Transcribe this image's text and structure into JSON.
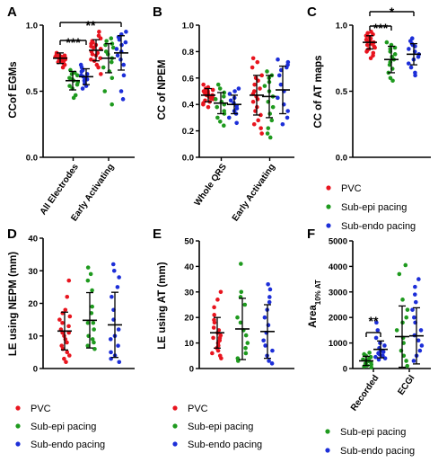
{
  "colors": {
    "red": "#e8141e",
    "green": "#1e9a1e",
    "blue": "#1c2ed8",
    "black": "#000000"
  },
  "chart_data": [
    {
      "panel": "A",
      "type": "scatter",
      "ylabel": "CCof EGMs",
      "ylim": [
        0,
        1
      ],
      "yticks": [
        "0.0",
        "0.5",
        "1.0"
      ],
      "categories": [
        "All Electrodes",
        "Early Activating"
      ],
      "significance": [
        "***",
        "**"
      ],
      "groups": [
        {
          "category": 0,
          "color": "red",
          "mean": 0.75,
          "sd": 0.04,
          "points": [
            0.77,
            0.76,
            0.75,
            0.75,
            0.74,
            0.73,
            0.78,
            0.72,
            0.76,
            0.74,
            0.71,
            0.79,
            0.75,
            0.73,
            0.77,
            0.7,
            0.74,
            0.76,
            0.72,
            0.68
          ]
        },
        {
          "category": 0,
          "color": "green",
          "mean": 0.58,
          "sd": 0.07,
          "points": [
            0.66,
            0.63,
            0.6,
            0.58,
            0.57,
            0.55,
            0.52,
            0.47,
            0.45,
            0.62,
            0.59,
            0.54,
            0.64
          ]
        },
        {
          "category": 0,
          "color": "blue",
          "mean": 0.61,
          "sd": 0.06,
          "points": [
            0.7,
            0.68,
            0.65,
            0.63,
            0.61,
            0.6,
            0.58,
            0.56,
            0.54,
            0.52,
            0.62,
            0.66,
            0.59
          ]
        },
        {
          "category": 1,
          "color": "red",
          "mean": 0.81,
          "sd": 0.08,
          "points": [
            0.95,
            0.92,
            0.9,
            0.88,
            0.86,
            0.85,
            0.83,
            0.82,
            0.8,
            0.78,
            0.77,
            0.75,
            0.73,
            0.7,
            0.68,
            0.63,
            0.87,
            0.79,
            0.84,
            0.74
          ]
        },
        {
          "category": 1,
          "color": "green",
          "mean": 0.75,
          "sd": 0.11,
          "points": [
            0.9,
            0.88,
            0.85,
            0.83,
            0.8,
            0.78,
            0.75,
            0.72,
            0.68,
            0.65,
            0.6,
            0.5,
            0.4,
            0.86
          ]
        },
        {
          "category": 1,
          "color": "blue",
          "mean": 0.79,
          "sd": 0.13,
          "points": [
            0.95,
            0.93,
            0.91,
            0.89,
            0.87,
            0.85,
            0.82,
            0.8,
            0.77,
            0.74,
            0.7,
            0.62,
            0.5,
            0.44
          ]
        }
      ]
    },
    {
      "panel": "B",
      "type": "scatter",
      "ylabel": "CC of NPEM",
      "ylim": [
        0,
        1
      ],
      "yticks": [
        "0.0",
        "0.2",
        "0.4",
        "0.6",
        "0.8",
        "1.0"
      ],
      "categories": [
        "Whole QRS",
        "Early Activating"
      ],
      "significance": [],
      "groups": [
        {
          "category": 0,
          "color": "red",
          "mean": 0.47,
          "sd": 0.05,
          "points": [
            0.55,
            0.53,
            0.52,
            0.51,
            0.5,
            0.49,
            0.48,
            0.47,
            0.47,
            0.46,
            0.45,
            0.44,
            0.43,
            0.42,
            0.41,
            0.4,
            0.38,
            0.49,
            0.5,
            0.45
          ]
        },
        {
          "category": 0,
          "color": "green",
          "mean": 0.41,
          "sd": 0.08,
          "points": [
            0.55,
            0.52,
            0.49,
            0.46,
            0.44,
            0.42,
            0.4,
            0.38,
            0.35,
            0.33,
            0.3,
            0.27,
            0.24
          ]
        },
        {
          "category": 0,
          "color": "blue",
          "mean": 0.4,
          "sd": 0.07,
          "points": [
            0.52,
            0.5,
            0.48,
            0.45,
            0.43,
            0.41,
            0.39,
            0.37,
            0.35,
            0.33,
            0.3,
            0.26
          ]
        },
        {
          "category": 1,
          "color": "red",
          "mean": 0.47,
          "sd": 0.15,
          "points": [
            0.75,
            0.72,
            0.68,
            0.62,
            0.58,
            0.55,
            0.52,
            0.48,
            0.46,
            0.44,
            0.42,
            0.38,
            0.35,
            0.32,
            0.28,
            0.25,
            0.22,
            0.18,
            0.6,
            0.5
          ]
        },
        {
          "category": 1,
          "color": "green",
          "mean": 0.46,
          "sd": 0.16,
          "points": [
            0.65,
            0.62,
            0.6,
            0.57,
            0.54,
            0.5,
            0.46,
            0.42,
            0.38,
            0.33,
            0.28,
            0.22,
            0.18,
            0.15
          ]
        },
        {
          "category": 1,
          "color": "blue",
          "mean": 0.51,
          "sd": 0.18,
          "points": [
            0.74,
            0.72,
            0.7,
            0.68,
            0.66,
            0.62,
            0.55,
            0.5,
            0.45,
            0.4,
            0.35,
            0.3,
            0.25
          ]
        }
      ]
    },
    {
      "panel": "C",
      "type": "scatter",
      "ylabel": "CC of AT maps",
      "ylim": [
        0,
        1
      ],
      "yticks": [
        "0.0",
        "0.5",
        "1.0"
      ],
      "categories": [
        ""
      ],
      "significance": [
        "***",
        "*"
      ],
      "legend": [
        "PVC",
        "Sub-epi pacing",
        "Sub-endo pacing"
      ],
      "groups": [
        {
          "category": 0,
          "color": "red",
          "offset": -1,
          "mean": 0.87,
          "sd": 0.05,
          "points": [
            0.95,
            0.94,
            0.93,
            0.92,
            0.91,
            0.9,
            0.89,
            0.88,
            0.88,
            0.87,
            0.86,
            0.85,
            0.84,
            0.83,
            0.82,
            0.81,
            0.8,
            0.79,
            0.77,
            0.75
          ]
        },
        {
          "category": 0,
          "color": "green",
          "offset": 0,
          "mean": 0.74,
          "sd": 0.1,
          "points": [
            0.87,
            0.85,
            0.83,
            0.8,
            0.78,
            0.76,
            0.74,
            0.72,
            0.7,
            0.67,
            0.64,
            0.6,
            0.58,
            0.82
          ]
        },
        {
          "category": 0,
          "color": "blue",
          "offset": 1,
          "mean": 0.78,
          "sd": 0.08,
          "points": [
            0.9,
            0.88,
            0.86,
            0.84,
            0.82,
            0.8,
            0.78,
            0.76,
            0.74,
            0.71,
            0.68,
            0.64,
            0.62,
            0.85
          ]
        }
      ]
    },
    {
      "panel": "D",
      "type": "scatter",
      "ylabel": "LE using NEPM (mm)",
      "ylim": [
        0,
        40
      ],
      "yticks": [
        "0",
        "10",
        "20",
        "30",
        "40"
      ],
      "categories": [
        ""
      ],
      "significance": [],
      "legend": [
        "PVC",
        "Sub-epi pacing",
        "Sub-endo pacing"
      ],
      "groups": [
        {
          "category": 0,
          "color": "red",
          "offset": -1,
          "mean": 11.5,
          "sd": 5.8,
          "points": [
            27,
            22,
            18,
            17,
            16,
            15,
            14,
            13,
            12,
            11,
            11,
            10,
            9,
            8,
            7,
            6,
            5,
            4,
            3,
            2
          ]
        },
        {
          "category": 0,
          "color": "green",
          "offset": 0,
          "mean": 14.8,
          "sd": 8.5,
          "points": [
            31,
            29,
            27,
            24,
            19,
            17,
            14,
            12,
            10,
            9,
            8,
            7,
            6,
            14
          ]
        },
        {
          "category": 0,
          "color": "blue",
          "offset": 1,
          "mean": 13.4,
          "sd": 10.0,
          "points": [
            32,
            30,
            28,
            25,
            22,
            18,
            15,
            12,
            10,
            9,
            7,
            5,
            4,
            3,
            2
          ]
        }
      ]
    },
    {
      "panel": "E",
      "type": "scatter",
      "ylabel": "LE using AT (mm)",
      "ylim": [
        0,
        50
      ],
      "yticks": [
        "0",
        "10",
        "20",
        "30",
        "40",
        "50"
      ],
      "categories": [
        ""
      ],
      "significance": [],
      "legend": [
        "PVC",
        "Sub-epi pacing",
        "Sub-endo pacing"
      ],
      "groups": [
        {
          "category": 0,
          "color": "red",
          "offset": -1,
          "mean": 14,
          "sd": 6,
          "points": [
            30,
            27,
            24,
            21,
            19,
            18,
            16,
            15,
            14,
            13,
            12,
            12,
            11,
            10,
            9,
            8,
            7,
            6,
            5,
            4
          ]
        },
        {
          "category": 0,
          "color": "green",
          "offset": 0,
          "mean": 15.5,
          "sd": 12,
          "points": [
            41,
            30,
            28,
            25,
            20,
            18,
            15,
            13,
            10,
            8,
            6,
            4,
            3
          ]
        },
        {
          "category": 0,
          "color": "blue",
          "offset": 1,
          "mean": 14.5,
          "sd": 10.5,
          "points": [
            33,
            31,
            28,
            26,
            23,
            20,
            17,
            14,
            11,
            9,
            7,
            5,
            3,
            2
          ]
        }
      ]
    },
    {
      "panel": "F",
      "type": "scatter",
      "ylabel": "Area",
      "ylabel_sub": "10% AT",
      "ylim": [
        0,
        5000
      ],
      "yticks": [
        "0",
        "1000",
        "2000",
        "3000",
        "4000",
        "5000"
      ],
      "categories": [
        "Recorded",
        "ECGI"
      ],
      "significance": [
        "**"
      ],
      "legend": [
        "Sub-epi pacing",
        "Sub-endo pacing"
      ],
      "groups": [
        {
          "category": 0,
          "color": "green",
          "mean": 300,
          "sd": 180,
          "points": [
            620,
            560,
            500,
            450,
            400,
            360,
            320,
            280,
            240,
            200,
            160,
            120,
            80,
            40
          ]
        },
        {
          "category": 0,
          "color": "blue",
          "mean": 750,
          "sd": 330,
          "points": [
            1800,
            1500,
            1200,
            1000,
            900,
            800,
            700,
            650,
            600,
            550,
            500,
            450,
            400,
            350
          ]
        },
        {
          "category": 1,
          "color": "green",
          "mean": 1250,
          "sd": 1200,
          "points": [
            4050,
            3700,
            2700,
            2300,
            2000,
            1800,
            1500,
            1200,
            1000,
            700,
            500,
            300,
            100
          ]
        },
        {
          "category": 1,
          "color": "blue",
          "mean": 1280,
          "sd": 1100,
          "points": [
            3500,
            3200,
            2900,
            2600,
            2300,
            2000,
            1800,
            1500,
            1300,
            1100,
            900,
            700,
            500,
            300
          ]
        }
      ]
    }
  ]
}
